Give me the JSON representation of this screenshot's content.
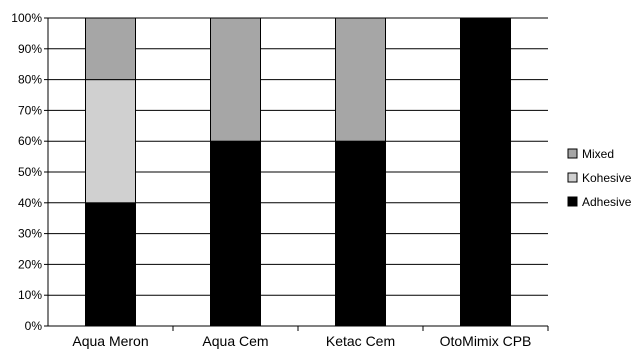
{
  "chart_data": {
    "type": "bar",
    "stacked": true,
    "categories": [
      "Aqua Meron",
      "Aqua Cem",
      "Ketac Cem",
      "OtoMimix CPB"
    ],
    "series": [
      {
        "name": "Adhesive",
        "values": [
          40,
          60,
          60,
          100
        ],
        "color": "#000000"
      },
      {
        "name": "Kohesive",
        "values": [
          40,
          0,
          0,
          0
        ],
        "color": "#d0d0d0"
      },
      {
        "name": "Mixed",
        "values": [
          20,
          40,
          40,
          0
        ],
        "color": "#a6a6a6"
      }
    ],
    "yticks": [
      "0%",
      "10%",
      "20%",
      "30%",
      "40%",
      "50%",
      "60%",
      "70%",
      "80%",
      "90%",
      "100%"
    ],
    "ylim": [
      0,
      100
    ],
    "grid": true,
    "legend_position": "right",
    "legend_order": [
      "Mixed",
      "Kohesive",
      "Adhesive"
    ]
  }
}
